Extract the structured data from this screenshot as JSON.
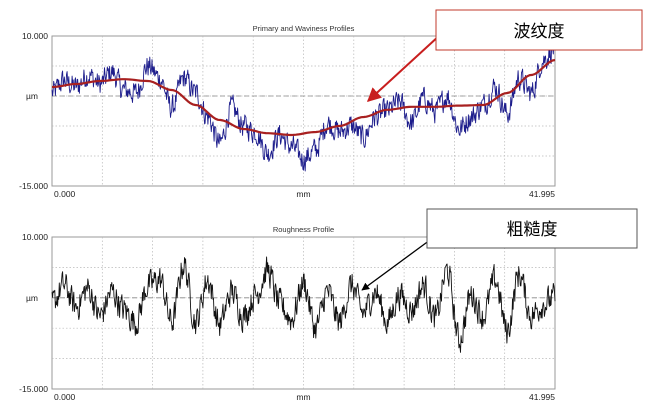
{
  "colors": {
    "primary_trace": "#1d1d8c",
    "waviness_trace": "#a82020",
    "roughness_trace": "#111111",
    "callout_arrow_top": "#c81e1e",
    "callout_arrow_bottom": "#000000",
    "grid": "#b8b8b8",
    "frame": "#9a9a9a",
    "mean_line": "#888888"
  },
  "callouts": [
    {
      "label": "波纹度"
    },
    {
      "label": "粗糙度"
    }
  ],
  "chart_data": [
    {
      "type": "line",
      "title": "Primary and Waviness Profiles",
      "xlabel": "mm",
      "ylabel": "µm",
      "xlim": [
        0.0,
        41.995
      ],
      "ylim": [
        -15.0,
        10.0
      ],
      "x_tick_labels": [
        "0.000",
        "mm",
        "41.995"
      ],
      "y_tick_labels": [
        "10.000",
        "µm",
        "-15.000"
      ],
      "grid": true,
      "series": [
        {
          "name": "Primary",
          "color": "#1d1d8c",
          "x": [
            0,
            1,
            2,
            3,
            4,
            5,
            6,
            7,
            8,
            9,
            10,
            11,
            12,
            13,
            14,
            15,
            16,
            17,
            18,
            19,
            20,
            21,
            22,
            23,
            24,
            25,
            26,
            27,
            28,
            29,
            30,
            31,
            32,
            33,
            34,
            35,
            36,
            37,
            38,
            39,
            40,
            41,
            42
          ],
          "y": [
            0.5,
            2.5,
            1.5,
            3.5,
            2.0,
            4.0,
            1.0,
            0.5,
            5.0,
            3.0,
            -2.0,
            3.0,
            0.5,
            -3.5,
            -8.0,
            -2.0,
            -5.0,
            -6.0,
            -9.5,
            -6.5,
            -8.5,
            -10.5,
            -9.0,
            -4.5,
            -6.0,
            -5.0,
            -7.0,
            -3.5,
            -2.5,
            -1.0,
            -4.5,
            -0.5,
            -2.5,
            0.0,
            -5.5,
            -3.5,
            -1.5,
            1.5,
            -3.0,
            3.0,
            0.5,
            6.0,
            8.0
          ]
        },
        {
          "name": "Waviness",
          "color": "#a82020",
          "x": [
            0,
            2,
            4,
            6,
            8,
            10,
            12,
            14,
            16,
            18,
            20,
            22,
            24,
            26,
            28,
            30,
            32,
            34,
            36,
            38,
            40,
            42
          ],
          "y": [
            1.5,
            2.0,
            2.5,
            2.8,
            2.5,
            1.0,
            -1.5,
            -4.0,
            -5.5,
            -6.2,
            -6.5,
            -6.0,
            -5.0,
            -3.5,
            -2.3,
            -1.8,
            -1.8,
            -1.6,
            -1.5,
            0.5,
            3.5,
            6.0
          ]
        }
      ]
    },
    {
      "type": "line",
      "title": "Roughness Profile",
      "xlabel": "mm",
      "ylabel": "µm",
      "xlim": [
        0.0,
        41.995
      ],
      "ylim": [
        -15.0,
        10.0
      ],
      "x_tick_labels": [
        "0.000",
        "mm",
        "41.995"
      ],
      "y_tick_labels": [
        "10.000",
        "µm",
        "-15.000"
      ],
      "grid": true,
      "series": [
        {
          "name": "Roughness",
          "color": "#111111",
          "x": [
            0,
            1,
            2,
            3,
            4,
            5,
            6,
            7,
            8,
            9,
            10,
            11,
            12,
            13,
            14,
            15,
            16,
            17,
            18,
            19,
            20,
            21,
            22,
            23,
            24,
            25,
            26,
            27,
            28,
            29,
            30,
            31,
            32,
            33,
            34,
            35,
            36,
            37,
            38,
            39,
            40,
            41,
            42
          ],
          "y": [
            -1.0,
            2.0,
            -1.5,
            1.5,
            -3.0,
            1.0,
            -2.0,
            -4.0,
            2.0,
            3.0,
            -4.0,
            5.5,
            -4.0,
            3.0,
            -4.5,
            1.0,
            -3.0,
            0.5,
            4.5,
            -1.0,
            -3.5,
            2.5,
            -5.0,
            1.0,
            -4.0,
            2.0,
            -2.5,
            1.0,
            -4.0,
            0.5,
            -2.0,
            2.0,
            -3.5,
            4.5,
            -7.0,
            0.5,
            -3.0,
            3.0,
            -5.5,
            4.0,
            -3.0,
            -1.0,
            0.0
          ]
        }
      ]
    }
  ]
}
